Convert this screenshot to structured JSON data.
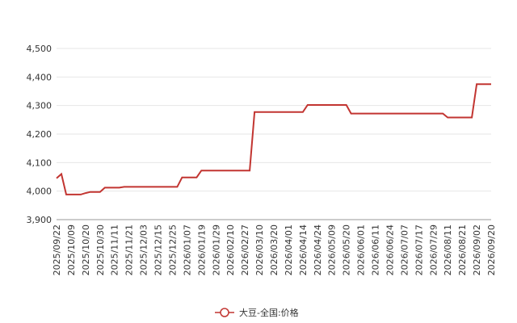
{
  "chart_data": {
    "type": "line",
    "categories": [
      "2025/09/22",
      null,
      null,
      "2025/10/09",
      null,
      null,
      "2025/10/20",
      null,
      null,
      "2025/10/30",
      null,
      null,
      "2025/11/11",
      null,
      null,
      "2025/11/21",
      null,
      null,
      "2025/12/03",
      null,
      null,
      "2025/12/15",
      null,
      null,
      "2025/12/25",
      null,
      null,
      "2026/01/07",
      null,
      null,
      "2026/01/19",
      null,
      null,
      "2026/01/29",
      null,
      null,
      "2026/02/10",
      null,
      null,
      "2026/02/27",
      null,
      null,
      "2026/03/10",
      null,
      null,
      "2026/03/20",
      null,
      null,
      "2026/04/01",
      null,
      null,
      "2026/04/14",
      null,
      null,
      "2026/04/24",
      null,
      null,
      "2026/05/09",
      null,
      null,
      "2026/05/20",
      null,
      null,
      "2026/06/01",
      null,
      null,
      "2026/06/11",
      null,
      null,
      "2026/06/24",
      null,
      null,
      "2026/07/07",
      null,
      null,
      "2026/07/17",
      null,
      null,
      "2026/07/29",
      null,
      null,
      "2026/08/11",
      null,
      null,
      "2026/08/21",
      null,
      null,
      "2026/09/02",
      null,
      null,
      "2026/09/20"
    ],
    "series": [
      {
        "name": "大豆-全国:价格",
        "color": "#c23531",
        "values": [
          4045,
          4060,
          3988,
          3988,
          3988,
          3988,
          3993,
          3997,
          3997,
          3997,
          4012,
          4012,
          4012,
          4012,
          4015,
          4015,
          4015,
          4015,
          4015,
          4015,
          4015,
          4015,
          4015,
          4015,
          4015,
          4015,
          4048,
          4048,
          4048,
          4048,
          4072,
          4072,
          4072,
          4072,
          4072,
          4072,
          4072,
          4072,
          4072,
          4072,
          4072,
          4277,
          4277,
          4277,
          4277,
          4277,
          4277,
          4277,
          4277,
          4277,
          4277,
          4277,
          4302,
          4302,
          4302,
          4302,
          4302,
          4302,
          4302,
          4302,
          4302,
          4272,
          4272,
          4272,
          4272,
          4272,
          4272,
          4272,
          4272,
          4272,
          4272,
          4272,
          4272,
          4272,
          4272,
          4272,
          4272,
          4272,
          4272,
          4272,
          4272,
          4258,
          4258,
          4258,
          4258,
          4258,
          4258,
          4375,
          4375,
          4375,
          4375
        ]
      }
    ],
    "ylim": [
      3900,
      4500
    ],
    "yticks": [
      {
        "value": 3900,
        "label": "3,900"
      },
      {
        "value": 4000,
        "label": "4,000"
      },
      {
        "value": 4100,
        "label": "4,100"
      },
      {
        "value": 4200,
        "label": "4,200"
      },
      {
        "value": 4300,
        "label": "4,300"
      },
      {
        "value": 4400,
        "label": "4,400"
      },
      {
        "value": 4500,
        "label": "4,500"
      }
    ],
    "grid": true,
    "legend": "bottom"
  }
}
